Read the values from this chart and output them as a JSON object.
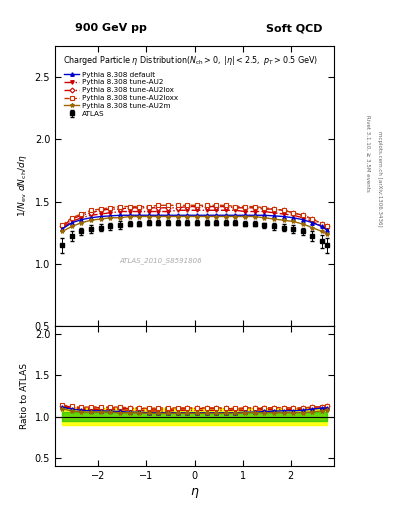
{
  "title_left": "900 GeV pp",
  "title_right": "Soft QCD",
  "main_title": "Charged Particle η Distribution(N_{ch} > 0, |η| < 2.5, p_T > 0.5 GeV)",
  "xlabel": "η",
  "ylabel_main": "1/N_{ev} dN_{ch}/dη",
  "ylabel_ratio": "Ratio to ATLAS",
  "right_label_top": "Rivet 3.1.10, ≥ 3.5M events",
  "right_label_bot": "mcplots.cern.ch [arXiv:1306.3436]",
  "watermark": "ATLAS_2010_S8591806",
  "xlim": [
    -2.9,
    2.9
  ],
  "ylim_main": [
    0.5,
    2.75
  ],
  "ylim_ratio": [
    0.4,
    2.1
  ],
  "yticks_main": [
    0.5,
    1.0,
    1.5,
    2.0,
    2.5
  ],
  "yticks_ratio": [
    0.5,
    1.0,
    1.5,
    2.0
  ],
  "eta": [
    -2.75,
    -2.55,
    -2.35,
    -2.15,
    -1.95,
    -1.75,
    -1.55,
    -1.35,
    -1.15,
    -0.95,
    -0.75,
    -0.55,
    -0.35,
    -0.15,
    0.05,
    0.25,
    0.45,
    0.65,
    0.85,
    1.05,
    1.25,
    1.45,
    1.65,
    1.85,
    2.05,
    2.25,
    2.45,
    2.65,
    2.75
  ],
  "atlas_y": [
    1.15,
    1.22,
    1.26,
    1.28,
    1.29,
    1.3,
    1.31,
    1.32,
    1.32,
    1.33,
    1.33,
    1.33,
    1.33,
    1.33,
    1.33,
    1.33,
    1.33,
    1.33,
    1.33,
    1.32,
    1.32,
    1.31,
    1.3,
    1.29,
    1.28,
    1.26,
    1.22,
    1.18,
    1.15
  ],
  "atlas_err": [
    0.06,
    0.04,
    0.03,
    0.03,
    0.03,
    0.03,
    0.03,
    0.02,
    0.02,
    0.02,
    0.02,
    0.02,
    0.02,
    0.02,
    0.02,
    0.02,
    0.02,
    0.02,
    0.02,
    0.02,
    0.02,
    0.02,
    0.03,
    0.03,
    0.03,
    0.03,
    0.04,
    0.05,
    0.06
  ],
  "default_y": [
    1.28,
    1.33,
    1.355,
    1.37,
    1.38,
    1.385,
    1.39,
    1.39,
    1.39,
    1.39,
    1.39,
    1.39,
    1.39,
    1.39,
    1.39,
    1.39,
    1.39,
    1.39,
    1.39,
    1.39,
    1.39,
    1.39,
    1.385,
    1.38,
    1.37,
    1.355,
    1.33,
    1.3,
    1.27
  ],
  "au2_y": [
    1.29,
    1.34,
    1.37,
    1.39,
    1.4,
    1.41,
    1.42,
    1.42,
    1.42,
    1.42,
    1.42,
    1.42,
    1.43,
    1.43,
    1.43,
    1.43,
    1.43,
    1.43,
    1.43,
    1.42,
    1.42,
    1.42,
    1.41,
    1.4,
    1.39,
    1.37,
    1.34,
    1.3,
    1.28
  ],
  "au2lox_y": [
    1.3,
    1.36,
    1.39,
    1.41,
    1.43,
    1.44,
    1.44,
    1.45,
    1.45,
    1.45,
    1.45,
    1.45,
    1.45,
    1.46,
    1.46,
    1.46,
    1.46,
    1.46,
    1.45,
    1.45,
    1.45,
    1.44,
    1.44,
    1.43,
    1.41,
    1.39,
    1.36,
    1.32,
    1.3
  ],
  "au2loxx_y": [
    1.31,
    1.37,
    1.4,
    1.43,
    1.44,
    1.45,
    1.46,
    1.46,
    1.46,
    1.46,
    1.47,
    1.47,
    1.47,
    1.47,
    1.47,
    1.47,
    1.47,
    1.47,
    1.46,
    1.46,
    1.46,
    1.45,
    1.44,
    1.43,
    1.41,
    1.39,
    1.36,
    1.32,
    1.3
  ],
  "au2m_y": [
    1.26,
    1.3,
    1.33,
    1.35,
    1.36,
    1.37,
    1.37,
    1.38,
    1.38,
    1.38,
    1.38,
    1.38,
    1.38,
    1.38,
    1.38,
    1.38,
    1.38,
    1.38,
    1.38,
    1.38,
    1.38,
    1.37,
    1.36,
    1.35,
    1.34,
    1.32,
    1.29,
    1.26,
    1.24
  ],
  "color_default": "#0000cc",
  "color_au2": "#cc0000",
  "color_au2lox": "#cc0000",
  "color_au2loxx": "#cc3300",
  "color_au2m": "#996600",
  "color_atlas": "#000000",
  "green_band": 0.05,
  "yellow_band": 0.1
}
